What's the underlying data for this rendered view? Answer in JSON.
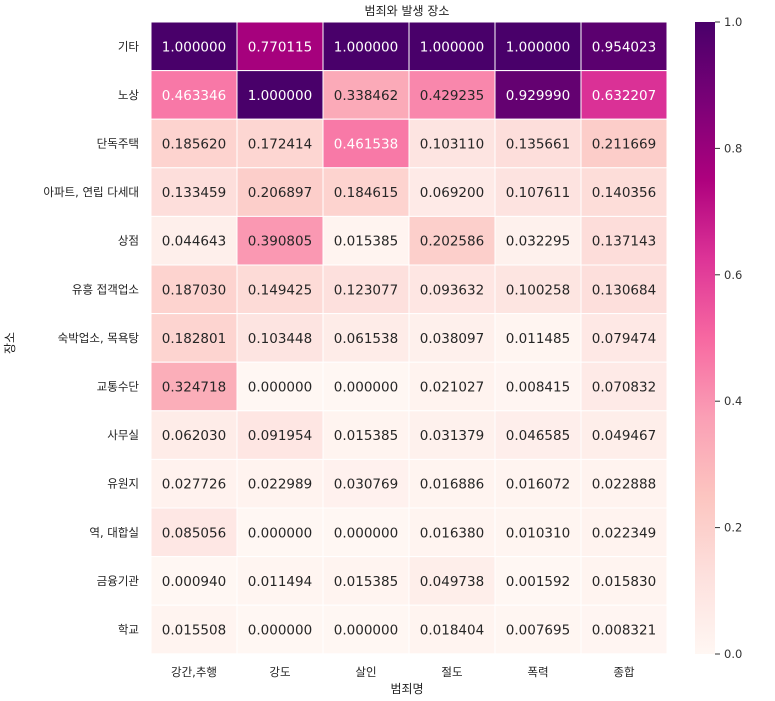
{
  "chart_data": {
    "type": "heatmap",
    "title": "범죄와 발생 장소",
    "xlabel": "범죄명",
    "ylabel": "장소",
    "x_categories": [
      "강간,추행",
      "강도",
      "살인",
      "절도",
      "폭력",
      "종합"
    ],
    "y_categories": [
      "기타",
      "노상",
      "단독주택",
      "아파트, 연립 다세대",
      "상점",
      "유흥 접객업소",
      "숙박업소, 목욕탕",
      "교통수단",
      "사무실",
      "유원지",
      "역, 대합실",
      "금융기관",
      "학교"
    ],
    "values": [
      [
        1.0,
        0.770115,
        1.0,
        1.0,
        1.0,
        0.954023
      ],
      [
        0.463346,
        1.0,
        0.338462,
        0.429235,
        0.92999,
        0.632207
      ],
      [
        0.18562,
        0.172414,
        0.461538,
        0.10311,
        0.135661,
        0.211669
      ],
      [
        0.133459,
        0.206897,
        0.184615,
        0.0692,
        0.107611,
        0.140356
      ],
      [
        0.044643,
        0.390805,
        0.015385,
        0.202586,
        0.032295,
        0.137143
      ],
      [
        0.18703,
        0.149425,
        0.123077,
        0.093632,
        0.100258,
        0.130684
      ],
      [
        0.182801,
        0.103448,
        0.061538,
        0.038097,
        0.011485,
        0.079474
      ],
      [
        0.324718,
        0.0,
        0.0,
        0.021027,
        0.008415,
        0.070832
      ],
      [
        0.06203,
        0.091954,
        0.015385,
        0.031379,
        0.046585,
        0.049467
      ],
      [
        0.027726,
        0.022989,
        0.030769,
        0.016886,
        0.016072,
        0.022888
      ],
      [
        0.085056,
        0.0,
        0.0,
        0.01638,
        0.01031,
        0.022349
      ],
      [
        0.00094,
        0.011494,
        0.015385,
        0.049738,
        0.001592,
        0.01583
      ],
      [
        0.015508,
        0.0,
        0.0,
        0.018404,
        0.007695,
        0.008321
      ]
    ],
    "value_format": "%.6f",
    "colormap": "RdPu",
    "colorbar": {
      "range": [
        0.0,
        1.0
      ],
      "ticks": [
        "0.0",
        "0.2",
        "0.4",
        "0.6",
        "0.8",
        "1.0"
      ]
    },
    "cell_gridlines": "white"
  }
}
